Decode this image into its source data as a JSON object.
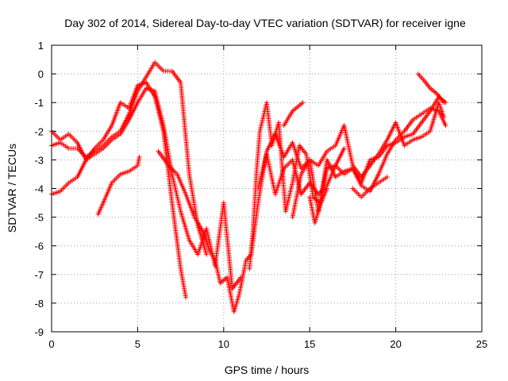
{
  "chart_data": {
    "type": "scatter",
    "title": "Day 302 of 2014, Sidereal Day-to-day VTEC variation (SDTVAR) for receiver igne",
    "xlabel": "GPS time / hours",
    "ylabel": "SDTVAR / TECUs",
    "xlim": [
      0,
      25
    ],
    "ylim": [
      -9,
      1
    ],
    "x_ticks": [
      0,
      5,
      10,
      15,
      20,
      25
    ],
    "y_ticks": [
      1,
      0,
      -1,
      -2,
      -3,
      -4,
      -5,
      -6,
      -7,
      -8,
      -9
    ],
    "grid": true,
    "marker": "plus",
    "color": "#ff0000",
    "series": [
      {
        "x": [
          0,
          0.5,
          1,
          1.5,
          2,
          2.5,
          3,
          3.5,
          4,
          4.5,
          5,
          5.5,
          6,
          6.5,
          7,
          7.5,
          7.8
        ],
        "y": [
          -2.0,
          -2.3,
          -2.1,
          -2.4,
          -3.0,
          -2.6,
          -2.3,
          -1.8,
          -1.0,
          -1.2,
          -0.4,
          -0.3,
          -0.8,
          -2.0,
          -4.5,
          -6.8,
          -7.8
        ]
      },
      {
        "x": [
          0,
          0.5,
          1,
          1.5,
          2,
          2.5,
          3,
          3.5,
          4,
          4.5,
          5,
          5.5,
          6,
          6.5,
          7,
          7.5,
          8,
          8.5,
          9
        ],
        "y": [
          -2.5,
          -2.4,
          -2.6,
          -2.6,
          -2.9,
          -2.7,
          -2.5,
          -2.2,
          -2.0,
          -1.4,
          -0.6,
          -0.1,
          0.4,
          0.1,
          0.1,
          -0.3,
          -3.5,
          -5.3,
          -6.3
        ]
      },
      {
        "x": [
          0,
          0.5,
          1,
          1.5,
          2,
          2.5,
          3,
          3.5,
          4,
          4.5,
          5,
          5.5,
          6,
          6.5,
          7,
          7.5,
          8,
          8.5,
          9,
          9.5,
          10,
          10.5,
          11
        ],
        "y": [
          -4.2,
          -4.1,
          -3.8,
          -3.6,
          -3.0,
          -2.8,
          -2.6,
          -2.3,
          -2.1,
          -1.6,
          -1.0,
          -0.5,
          -0.6,
          -1.8,
          -3.5,
          -4.8,
          -5.8,
          -6.3,
          -5.4,
          -6.7,
          -4.5,
          -7.5,
          -7.1
        ]
      },
      {
        "x": [
          2.7,
          3,
          3.5,
          4,
          4.5,
          5,
          5.1
        ],
        "y": [
          -4.9,
          -4.5,
          -3.8,
          -3.5,
          -3.4,
          -3.2,
          -2.9
        ]
      },
      {
        "x": [
          6.2,
          6.8,
          7.3,
          7.8,
          8.3,
          8.8,
          9.2,
          9.5,
          9.8,
          10.2,
          10.6,
          10.9,
          11.3,
          11.6,
          12,
          12.5,
          13,
          13.5,
          14,
          14.5,
          15,
          15.5,
          16,
          16.5,
          17
        ],
        "y": [
          -2.7,
          -3.2,
          -3.5,
          -4.2,
          -5.0,
          -5.5,
          -6.2,
          -6.5,
          -7.3,
          -7.1,
          -8.3,
          -7.7,
          -6.5,
          -6.3,
          -4.5,
          -2.7,
          -2.1,
          -2.9,
          -2.4,
          -3.3,
          -3.0,
          -4.8,
          -3.3,
          -3.2,
          -2.6
        ]
      },
      {
        "x": [
          11.5,
          11.7,
          11.9,
          12.1,
          12.3,
          12.5,
          12.8,
          13.2,
          13.6,
          14,
          14.4,
          14.8,
          15.2,
          15.6,
          16,
          16.5,
          17,
          17.5,
          18,
          18.5,
          19,
          19.5,
          20,
          20.5,
          21,
          21.5,
          22,
          22.5,
          22.9
        ],
        "y": [
          -6.8,
          -5.5,
          -3.5,
          -2.0,
          -1.5,
          -1.0,
          -2.5,
          -1.7,
          -4.8,
          -3.8,
          -2.5,
          -2.8,
          -4.3,
          -4.5,
          -3.0,
          -3.6,
          -3.4,
          -3.3,
          -3.9,
          -4.1,
          -3.5,
          -2.8,
          -2.3,
          -2.0,
          -1.6,
          -1.4,
          -1.2,
          -1.3,
          -1.8
        ]
      },
      {
        "x": [
          12,
          12.5,
          13,
          13.5,
          14,
          14.5,
          15,
          15.5,
          16,
          16.5,
          17,
          17.5,
          18,
          18.5,
          19,
          19.5,
          20,
          20.5,
          21,
          21.5,
          22,
          22.5,
          22.9
        ],
        "y": [
          -4.0,
          -2.8,
          -4.2,
          -3.3,
          -3.0,
          -4.2,
          -3.8,
          -4.2,
          -3.9,
          -3.2,
          -3.5,
          -3.3,
          -3.8,
          -3.0,
          -2.9,
          -2.5,
          -2.4,
          -2.2,
          -2.1,
          -1.7,
          -1.3,
          -0.8,
          -1.0
        ]
      },
      {
        "x": [
          14,
          14.5,
          15,
          15.5,
          16,
          16.5,
          17,
          17.5,
          18,
          18.5,
          19,
          19.5,
          20,
          20.5,
          21,
          21.5,
          22,
          22.5,
          22.8
        ],
        "y": [
          -5.0,
          -3.5,
          -3.0,
          -3.2,
          -2.7,
          -2.5,
          -1.8,
          -3.2,
          -3.6,
          -3.2,
          -2.8,
          -2.3,
          -1.7,
          -2.5,
          -2.3,
          -2.2,
          -2.0,
          -1.0,
          -1.5
        ]
      },
      {
        "x": [
          17.5,
          18,
          18.5,
          19,
          19.5
        ],
        "y": [
          -4.0,
          -4.3,
          -4.0,
          -3.8,
          -3.6
        ]
      },
      {
        "x": [
          21.3,
          21.6,
          22,
          22.4,
          22.8
        ],
        "y": [
          0.0,
          -0.2,
          -0.5,
          -0.7,
          -1.0
        ]
      },
      {
        "x": [
          15,
          15.3,
          15.6,
          16
        ],
        "y": [
          -4.3,
          -5.2,
          -4.6,
          -4.0
        ]
      },
      {
        "x": [
          13.5,
          14,
          14.6
        ],
        "y": [
          -1.8,
          -1.3,
          -1.0
        ]
      }
    ]
  }
}
